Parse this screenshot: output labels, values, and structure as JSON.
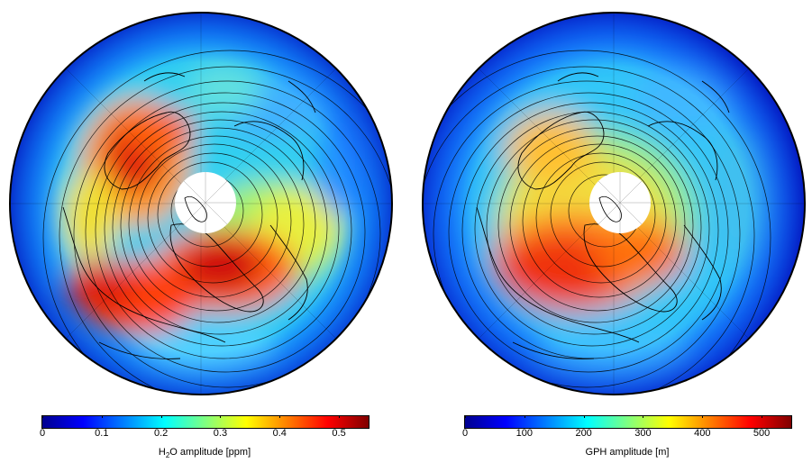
{
  "panels": [
    {
      "label_prefix": "H",
      "label_sub": "2",
      "label_rest": "O amplitude [ppm]",
      "ticks": [
        "0",
        "0.1",
        "0.2",
        "0.3",
        "0.4",
        "0.5"
      ],
      "tick_values": [
        0,
        0.1,
        0.2,
        0.3,
        0.4,
        0.5
      ],
      "range": [
        0,
        0.55
      ]
    },
    {
      "label_prefix": "GPH amplitude [m]",
      "label_sub": "",
      "label_rest": "",
      "ticks": [
        "0",
        "100",
        "200",
        "300",
        "400",
        "500"
      ],
      "tick_values": [
        0,
        100,
        200,
        300,
        400,
        500
      ],
      "range": [
        0,
        550
      ]
    }
  ],
  "colormap": [
    "#00008f",
    "#0000ff",
    "#0080ff",
    "#00ffff",
    "#80ff80",
    "#ffff00",
    "#ff8000",
    "#ff0000",
    "#800000"
  ]
}
